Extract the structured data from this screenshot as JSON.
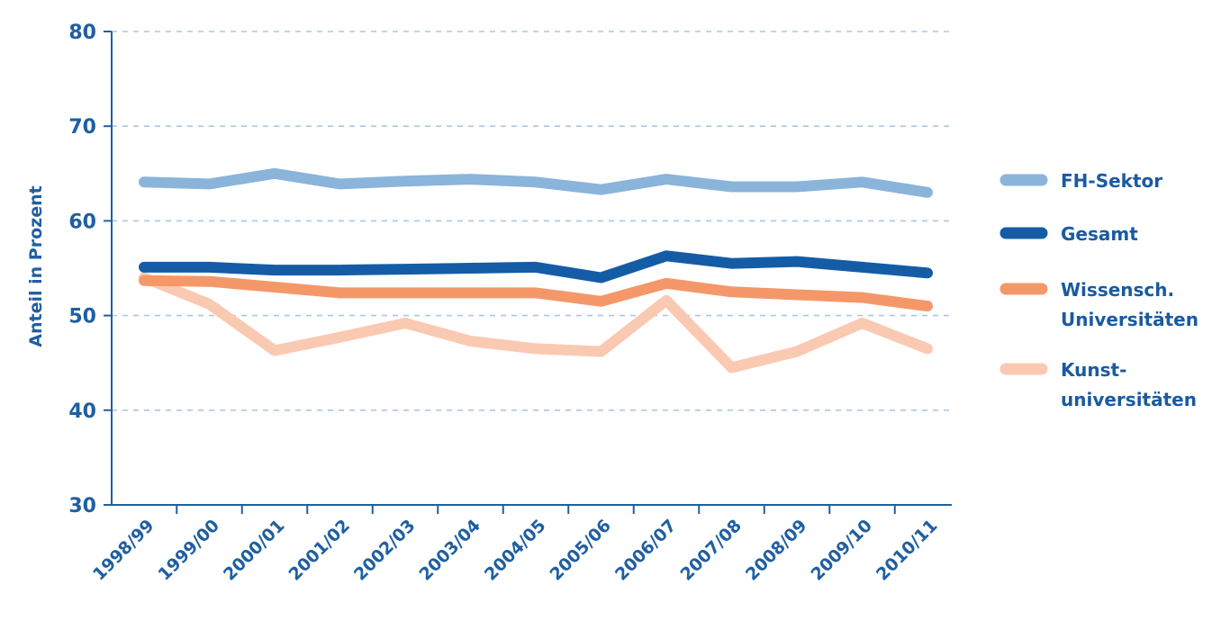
{
  "chart_data": {
    "type": "line",
    "title": "",
    "xlabel": "",
    "ylabel": "Anteil in Prozent",
    "ylim": [
      30,
      80
    ],
    "yticks": [
      30,
      40,
      50,
      60,
      70,
      80
    ],
    "grid": true,
    "legend_position": "right",
    "categories": [
      "1998/99",
      "1999/00",
      "2000/01",
      "2001/02",
      "2002/03",
      "2003/04",
      "2004/05",
      "2005/06",
      "2006/07",
      "2007/08",
      "2008/09",
      "2009/10",
      "2010/11"
    ],
    "series": [
      {
        "name": "FH-Sektor",
        "legend_lines": [
          "FH-Sektor"
        ],
        "color": "#8ab4da",
        "values": [
          64.1,
          63.9,
          65.0,
          63.9,
          64.2,
          64.4,
          64.1,
          63.3,
          64.4,
          63.6,
          63.6,
          64.1,
          63.0
        ]
      },
      {
        "name": "Gesamt",
        "legend_lines": [
          "Gesamt"
        ],
        "color": "#155ca6",
        "values": [
          55.1,
          55.1,
          54.8,
          54.8,
          54.9,
          55.0,
          55.1,
          54.0,
          56.3,
          55.5,
          55.7,
          55.1,
          54.5
        ]
      },
      {
        "name": "Wissensch. Universitäten",
        "legend_lines": [
          "Wissensch.",
          "Universitäten"
        ],
        "color": "#f4986a",
        "values": [
          53.7,
          53.6,
          53.0,
          52.4,
          52.4,
          52.4,
          52.4,
          51.5,
          53.4,
          52.5,
          52.2,
          51.9,
          51.0
        ]
      },
      {
        "name": "Kunst-universitäten",
        "legend_lines": [
          "Kunst-",
          "universitäten"
        ],
        "color": "#fac9b1",
        "values": [
          54.0,
          51.2,
          46.3,
          47.7,
          49.2,
          47.3,
          46.5,
          46.2,
          51.6,
          44.5,
          46.2,
          49.2,
          46.5
        ]
      }
    ]
  }
}
